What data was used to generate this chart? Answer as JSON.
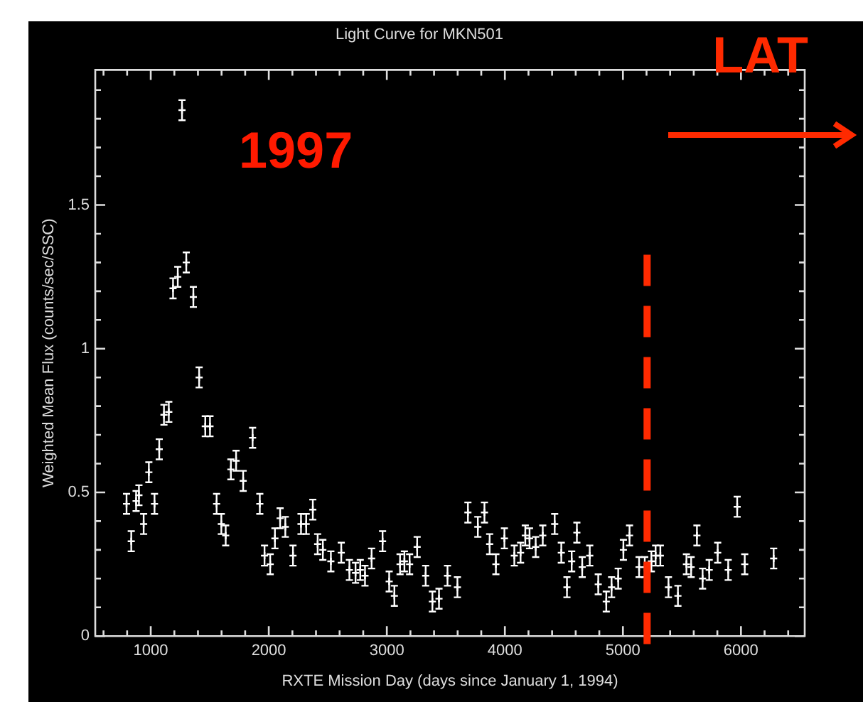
{
  "chart_data": {
    "type": "scatter",
    "title": "Light Curve for MKN501",
    "xlabel": "RXTE Mission Day (days since January 1, 1994)",
    "ylabel": "Weighted Mean Flux (counts/sec/SSC)",
    "annotations": [
      "1997"
    ],
    "x": [
      795,
      835,
      876,
      900,
      940,
      984,
      1032,
      1072,
      1112,
      1153,
      1189,
      1229,
      1265,
      1301,
      1361,
      1410,
      1462,
      1502,
      1558,
      1598,
      1635,
      1679,
      1723,
      1783,
      1863,
      1924,
      1964,
      2012,
      2052,
      2096,
      2140,
      2205,
      2273,
      2317,
      2373,
      2414,
      2458,
      2526,
      2614,
      2683,
      2735,
      2775,
      2815,
      2871,
      2964,
      3020,
      3064,
      3112,
      3149,
      3193,
      3257,
      3329,
      3386,
      3442,
      3514,
      3598,
      3687,
      3771,
      3827,
      3871,
      3924,
      3996,
      4080,
      4133,
      4173,
      4209,
      4261,
      4321,
      4422,
      4478,
      4526,
      4566,
      4610,
      4655,
      4719,
      4791,
      4859,
      4904,
      4960,
      5004,
      5056,
      5137,
      5185,
      5241,
      5277,
      5317,
      5386,
      5466,
      5538,
      5578,
      5627,
      5675,
      5731,
      5803,
      5892,
      5968,
      6032,
      6277
    ],
    "series": [
      {
        "color": "#ffffff",
        "values": [
          0.46,
          0.33,
          0.47,
          0.49,
          0.39,
          0.57,
          0.46,
          0.65,
          0.77,
          0.78,
          1.21,
          1.25,
          1.83,
          1.3,
          1.18,
          0.9,
          0.73,
          0.73,
          0.46,
          0.39,
          0.35,
          0.58,
          0.61,
          0.54,
          0.69,
          0.46,
          0.28,
          0.25,
          0.34,
          0.41,
          0.38,
          0.28,
          0.39,
          0.39,
          0.44,
          0.32,
          0.3,
          0.26,
          0.29,
          0.23,
          0.22,
          0.23,
          0.21,
          0.27,
          0.33,
          0.19,
          0.14,
          0.25,
          0.26,
          0.25,
          0.31,
          0.21,
          0.12,
          0.13,
          0.21,
          0.17,
          0.43,
          0.38,
          0.43,
          0.32,
          0.25,
          0.34,
          0.28,
          0.29,
          0.35,
          0.34,
          0.31,
          0.35,
          0.39,
          0.29,
          0.17,
          0.26,
          0.36,
          0.24,
          0.28,
          0.18,
          0.12,
          0.17,
          0.2,
          0.3,
          0.35,
          0.24,
          0.24,
          0.26,
          0.28,
          0.28,
          0.17,
          0.14,
          0.25,
          0.24,
          0.35,
          0.2,
          0.23,
          0.29,
          0.23,
          0.45,
          0.25,
          0.27
        ],
        "errors": [
          0.035,
          0.035,
          0.035,
          0.035,
          0.035,
          0.035,
          0.035,
          0.035,
          0.035,
          0.035,
          0.035,
          0.035,
          0.035,
          0.035,
          0.035,
          0.035,
          0.035,
          0.035,
          0.035,
          0.035,
          0.035,
          0.035,
          0.035,
          0.035,
          0.035,
          0.035,
          0.035,
          0.035,
          0.035,
          0.035,
          0.035,
          0.035,
          0.035,
          0.035,
          0.035,
          0.035,
          0.035,
          0.035,
          0.035,
          0.035,
          0.035,
          0.035,
          0.035,
          0.035,
          0.035,
          0.035,
          0.035,
          0.035,
          0.035,
          0.035,
          0.035,
          0.035,
          0.035,
          0.035,
          0.035,
          0.035,
          0.035,
          0.035,
          0.035,
          0.035,
          0.035,
          0.035,
          0.035,
          0.035,
          0.035,
          0.035,
          0.035,
          0.035,
          0.035,
          0.035,
          0.035,
          0.035,
          0.035,
          0.035,
          0.035,
          0.035,
          0.035,
          0.035,
          0.035,
          0.035,
          0.035,
          0.035,
          0.035,
          0.035,
          0.035,
          0.035,
          0.035,
          0.035,
          0.035,
          0.035,
          0.035,
          0.035,
          0.035,
          0.035,
          0.035,
          0.035,
          0.035,
          0.035
        ]
      }
    ],
    "xlim": [
      530,
      6540
    ],
    "ylim": [
      0,
      1.97
    ],
    "xticks": [
      {
        "value": 600,
        "label": null
      },
      {
        "value": 800,
        "label": null
      },
      1000,
      {
        "value": 1200,
        "label": null
      },
      {
        "value": 1400,
        "label": null
      },
      {
        "value": 1600,
        "label": null
      },
      {
        "value": 1800,
        "label": null
      },
      2000,
      {
        "value": 2200,
        "label": null
      },
      {
        "value": 2400,
        "label": null
      },
      {
        "value": 2600,
        "label": null
      },
      {
        "value": 2800,
        "label": null
      },
      3000,
      {
        "value": 3200,
        "label": null
      },
      {
        "value": 3400,
        "label": null
      },
      {
        "value": 3600,
        "label": null
      },
      {
        "value": 3800,
        "label": null
      },
      4000,
      {
        "value": 4200,
        "label": null
      },
      {
        "value": 4400,
        "label": null
      },
      {
        "value": 4600,
        "label": null
      },
      {
        "value": 4800,
        "label": null
      },
      5000,
      {
        "value": 5200,
        "label": null
      },
      {
        "value": 5400,
        "label": null
      },
      {
        "value": 5600,
        "label": null
      },
      {
        "value": 5800,
        "label": null
      },
      6000,
      {
        "value": 6200,
        "label": null
      },
      {
        "value": 6400,
        "label": null
      }
    ],
    "yticks": [
      0,
      {
        "value": 0.1,
        "label": null
      },
      {
        "value": 0.2,
        "label": null
      },
      {
        "value": 0.3,
        "label": null
      },
      {
        "value": 0.4,
        "label": null
      },
      0.5,
      {
        "value": 0.6,
        "label": null
      },
      {
        "value": 0.7,
        "label": null
      },
      {
        "value": 0.8,
        "label": null
      },
      {
        "value": 0.9,
        "label": null
      },
      1,
      {
        "value": 1.1,
        "label": null
      },
      {
        "value": 1.2,
        "label": null
      },
      {
        "value": 1.3,
        "label": null
      },
      {
        "value": 1.4,
        "label": null
      },
      1.5,
      {
        "value": 1.6,
        "label": null
      },
      {
        "value": 1.7,
        "label": null
      },
      {
        "value": 1.8,
        "label": null
      },
      {
        "value": 1.9,
        "label": null
      }
    ],
    "ref_lines": [
      {
        "axis": "x",
        "value": 5205,
        "label": "LAT",
        "color": "#ff2a00",
        "line_style": "dashed"
      }
    ],
    "legend": false,
    "grid": false,
    "marker": "cross"
  }
}
